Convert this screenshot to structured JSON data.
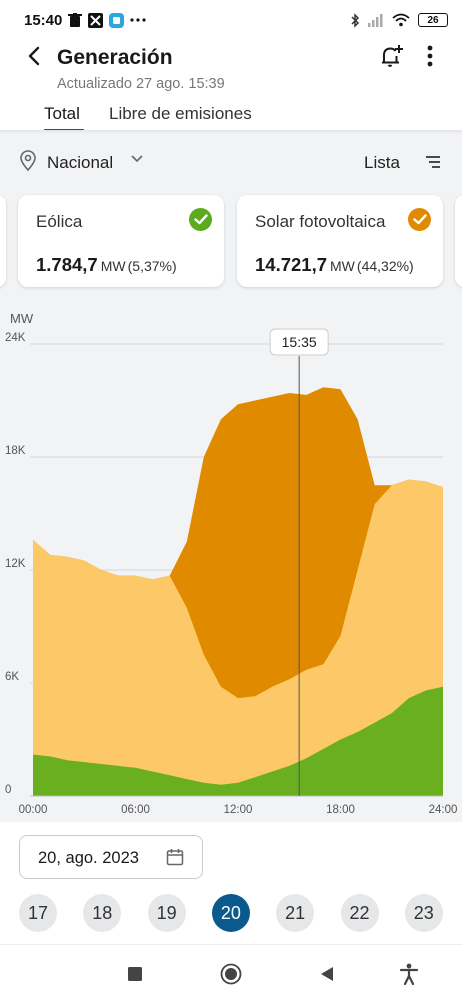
{
  "status_bar": {
    "time": "15:40",
    "battery": "26",
    "icons": [
      "trash-icon",
      "app-icon",
      "app-square-icon",
      "more-dots-icon",
      "bluetooth-icon",
      "signal-icon",
      "wifi-icon",
      "battery-icon"
    ]
  },
  "header": {
    "title": "Generación",
    "subtitle": "Actualizado 27 ago. 15:39",
    "tabs": [
      {
        "label": "Total",
        "active": true
      },
      {
        "label": "Libre de emisiones",
        "active": false
      }
    ]
  },
  "filter": {
    "location": "Nacional",
    "view_label": "Lista"
  },
  "cards": [
    {
      "name": "Eólica",
      "value": "1.784,7",
      "unit": "MW",
      "percent": "(5,37%)",
      "check_color": "#5aab1e"
    },
    {
      "name": "Solar fotovoltaica",
      "value": "14.721,7",
      "unit": "MW",
      "percent": "(44,32%)",
      "check_color": "#e08a00"
    }
  ],
  "chart_data": {
    "type": "area",
    "ylabel": "MW",
    "y_ticks": [
      "0",
      "6K",
      "12K",
      "18K",
      "24K"
    ],
    "y_tick_values": [
      0,
      6000,
      12000,
      18000,
      24000
    ],
    "x_ticks": [
      "00:00",
      "06:00",
      "12:00",
      "18:00",
      "24:00"
    ],
    "x_tick_values": [
      0,
      6,
      12,
      18,
      24
    ],
    "ylim": [
      0,
      24000
    ],
    "xlim": [
      0,
      24
    ],
    "cursor": {
      "label": "15:35",
      "x": 15.58
    },
    "colors": {
      "green": "#6aaf1f",
      "light_orange": "#fdc867",
      "dark_orange": "#e08a00"
    },
    "x": [
      0,
      1,
      2,
      3,
      4,
      5,
      6,
      7,
      8,
      9,
      10,
      11,
      12,
      13,
      14,
      15,
      16,
      17,
      18,
      19,
      20,
      21,
      22,
      23,
      24
    ],
    "series": [
      {
        "values": [
          2200,
          2100,
          1900,
          1800,
          1700,
          1600,
          1500,
          1300,
          1100,
          900,
          700,
          600,
          700,
          1000,
          1300,
          1600,
          2000,
          2500,
          3000,
          3400,
          3900,
          4400,
          5200,
          5600,
          5800
        ]
      },
      {
        "values": [
          13600,
          12800,
          12700,
          12500,
          12000,
          11700,
          11700,
          11500,
          11700,
          10000,
          7500,
          5800,
          5200,
          5300,
          5800,
          6200,
          6700,
          7000,
          8500,
          12000,
          15500,
          16500,
          16800,
          16700,
          16400
        ]
      },
      {
        "values": [
          13600,
          12800,
          12700,
          12500,
          12000,
          11700,
          11700,
          11500,
          11700,
          13500,
          18000,
          20000,
          20800,
          21000,
          21200,
          21400,
          21300,
          21700,
          21600,
          20000,
          16500,
          16500,
          16800,
          16700,
          16400
        ]
      }
    ]
  },
  "date_picker": {
    "date": "20, ago. 2023",
    "days": [
      "17",
      "18",
      "19",
      "20",
      "21",
      "22",
      "23"
    ],
    "selected": "20"
  }
}
